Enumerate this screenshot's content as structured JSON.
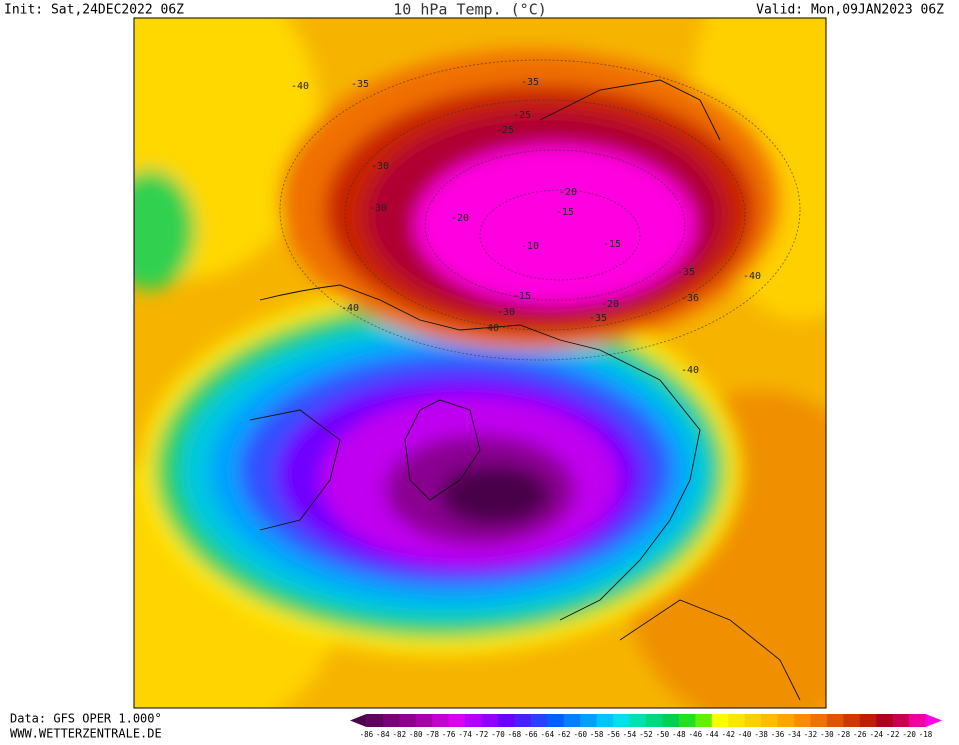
{
  "header": {
    "init": "Init: Sat,24DEC2022 06Z",
    "title": "10 hPa Temp. (°C)",
    "valid": "Valid: Mon,09JAN2023 06Z"
  },
  "footer": {
    "data": "Data: GFS OPER 1.000°",
    "site": "WWW.WETTERZENTRALE.DE"
  },
  "map": {
    "contour_labels": [
      "-40",
      "-35",
      "-35",
      "-30",
      "-30",
      "-25",
      "-25",
      "-20",
      "-20",
      "-15",
      "-15",
      "-10",
      "-15",
      "-20",
      "-30",
      "-35",
      "-35",
      "-40",
      "-40",
      "-40",
      "-36",
      "-40"
    ]
  },
  "legend": {
    "labels": [
      "-86",
      "-84",
      "-82",
      "-80",
      "-78",
      "-76",
      "-74",
      "-72",
      "-70",
      "-68",
      "-66",
      "-64",
      "-62",
      "-60",
      "-58",
      "-56",
      "-54",
      "-52",
      "-50",
      "-48",
      "-46",
      "-44",
      "-42",
      "-40",
      "-38",
      "-36",
      "-34",
      "-32",
      "-30",
      "-28",
      "-26",
      "-24",
      "-22",
      "-20",
      "-18"
    ],
    "colors": [
      "#4a004a",
      "#600060",
      "#780078",
      "#900090",
      "#a800a8",
      "#c400d0",
      "#d800f0",
      "#b400ff",
      "#9000ff",
      "#6c00ff",
      "#4820ff",
      "#2840ff",
      "#0060ff",
      "#0080ff",
      "#00a0ff",
      "#00c4ff",
      "#00e0e8",
      "#00e0b0",
      "#00d880",
      "#00d050",
      "#20e020",
      "#60f000",
      "#ffff00",
      "#ffe600",
      "#ffd000",
      "#ffbc00",
      "#ffa400",
      "#ff8c00",
      "#f07000",
      "#e05400",
      "#d03800",
      "#c01c00",
      "#b00020",
      "#c80050",
      "#f000a0",
      "#ff00e6"
    ]
  }
}
